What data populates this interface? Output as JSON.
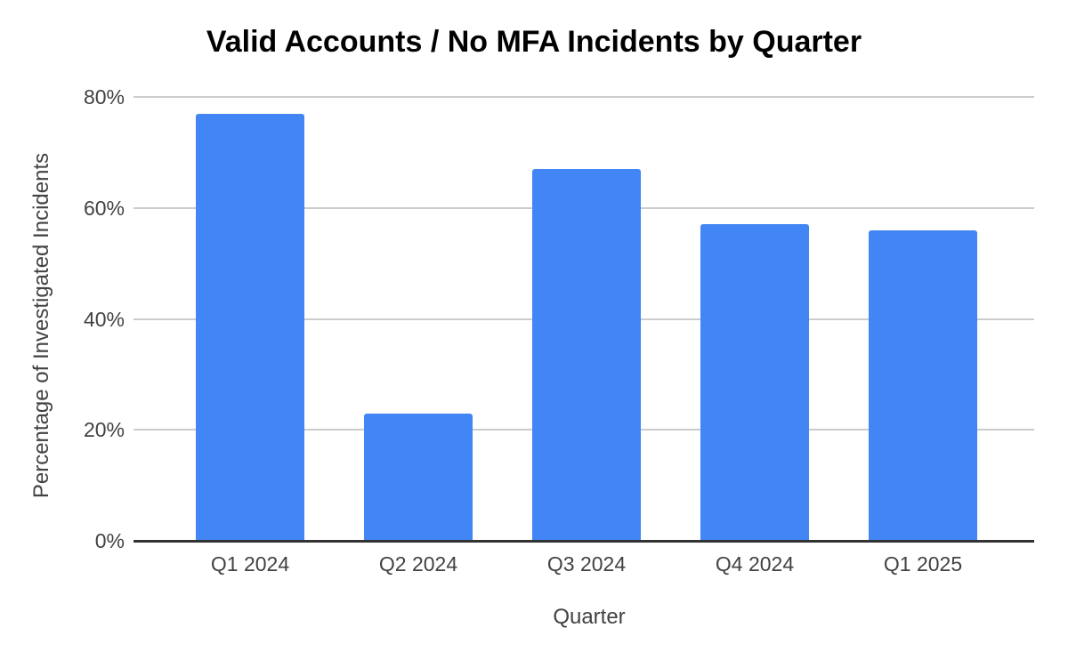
{
  "chart_data": {
    "type": "bar",
    "title": "Valid Accounts / No MFA Incidents by Quarter",
    "categories": [
      "Q1 2024",
      "Q2 2024",
      "Q3 2024",
      "Q4 2024",
      "Q1 2025"
    ],
    "values": [
      77,
      23,
      67,
      57,
      56
    ],
    "xlabel": "Quarter",
    "ylabel": "Percentage of Investigated Incidents",
    "ylim": [
      0,
      80
    ],
    "yticks": [
      0,
      20,
      40,
      60,
      80
    ],
    "ytick_labels": [
      "0%",
      "20%",
      "40%",
      "60%",
      "80%"
    ],
    "grid": true,
    "legend": "none",
    "bar_color": "#4285f4",
    "gridline_color": "#cccccc",
    "axis_line_color": "#333333",
    "text_color": "#424242",
    "title_color": "#000000",
    "background": "#ffffff"
  }
}
